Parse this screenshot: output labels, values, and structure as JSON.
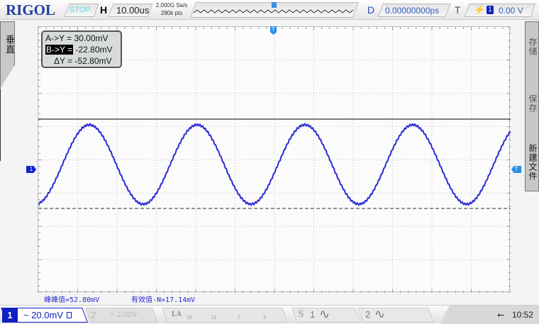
{
  "topbar": {
    "brand": "RIGOL",
    "run_status": "STOP",
    "h_label": "H",
    "timebase": "10.00us",
    "sample_rate": "2.000G Sa/s",
    "memory_depth": "280k pts",
    "d_label": "D",
    "delay": "0.00000000ps",
    "t_label": "T",
    "trigger_channel": "1",
    "trigger_level": "0.00 V"
  },
  "left_menu": {
    "label": "垂直"
  },
  "right_menu": {
    "items": [
      "存储",
      "保存",
      "新建文件"
    ]
  },
  "cursor": {
    "a": "A->Y =",
    "a_val": "30.00mV",
    "b": "B->Y =",
    "b_val": "-22.80mV",
    "d": "ΔY =",
    "d_val": "-52.80mV"
  },
  "measurements": {
    "vpp": "峰峰值=52.80mV",
    "vrms": "有效值-N=17.14mV"
  },
  "markers": {
    "ch1": "1",
    "trig": "T"
  },
  "bottom": {
    "ch1_num": "1",
    "ch1_scale": "~ 20.0mV",
    "ch2_num": "2",
    "ch2_scale": "= 2.00V",
    "la": "LA",
    "la_groups": [
      "15",
      "11",
      "7",
      "3"
    ],
    "s": "S",
    "s1": "1",
    "s2": "2",
    "time": "10:52"
  },
  "colors": {
    "trace": "#2b2bd6",
    "accent": "#1f3fa0"
  }
}
